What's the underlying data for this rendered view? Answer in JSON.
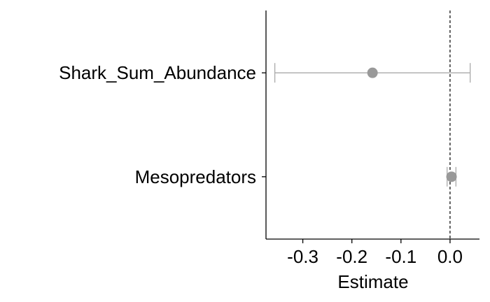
{
  "chart_data": {
    "type": "scatter",
    "title": "",
    "xlabel": "Estimate",
    "ylabel": "",
    "xlim": [
      -0.375,
      0.06
    ],
    "x_ticks": [
      -0.3,
      -0.2,
      -0.1,
      0.0
    ],
    "x_tick_labels": [
      "-0.3",
      "-0.2",
      "-0.1",
      "0.0"
    ],
    "categories": [
      "Shark_Sum_Abundance",
      "Mesopredators"
    ],
    "points": [
      {
        "label": "Shark_Sum_Abundance",
        "estimate": -0.158,
        "lower": -0.357,
        "upper": 0.041
      },
      {
        "label": "Mesopredators",
        "estimate": 0.003,
        "lower": -0.006,
        "upper": 0.012
      }
    ],
    "reference_line": 0,
    "grid": false,
    "colors": {
      "point": "#999999",
      "errorbar": "#aaaaaa",
      "axis": "#000000",
      "reference": "#000000"
    }
  }
}
